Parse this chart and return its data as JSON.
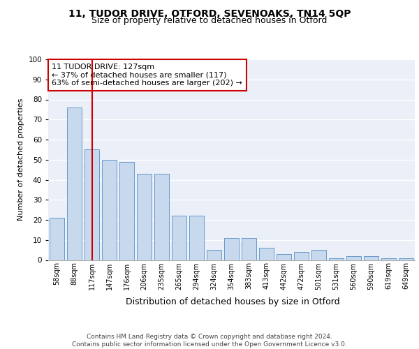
{
  "title1": "11, TUDOR DRIVE, OTFORD, SEVENOAKS, TN14 5QP",
  "title2": "Size of property relative to detached houses in Otford",
  "xlabel": "Distribution of detached houses by size in Otford",
  "ylabel": "Number of detached properties",
  "categories": [
    "58sqm",
    "88sqm",
    "117sqm",
    "147sqm",
    "176sqm",
    "206sqm",
    "235sqm",
    "265sqm",
    "294sqm",
    "324sqm",
    "354sqm",
    "383sqm",
    "413sqm",
    "442sqm",
    "472sqm",
    "501sqm",
    "531sqm",
    "560sqm",
    "590sqm",
    "619sqm",
    "649sqm"
  ],
  "values": [
    21,
    76,
    55,
    50,
    49,
    43,
    43,
    22,
    22,
    5,
    11,
    11,
    6,
    3,
    4,
    5,
    1,
    2,
    2,
    1,
    1
  ],
  "bar_color": "#c9d9ed",
  "bar_edge_color": "#6699cc",
  "highlight_index": 2,
  "highlight_line_color": "#cc0000",
  "annotation_text": "11 TUDOR DRIVE: 127sqm\n← 37% of detached houses are smaller (117)\n63% of semi-detached houses are larger (202) →",
  "annotation_box_color": "#ffffff",
  "annotation_box_edge_color": "#cc0000",
  "ylim": [
    0,
    100
  ],
  "yticks": [
    0,
    10,
    20,
    30,
    40,
    50,
    60,
    70,
    80,
    90,
    100
  ],
  "background_color": "#eaeff8",
  "grid_color": "#ffffff",
  "footer": "Contains HM Land Registry data © Crown copyright and database right 2024.\nContains public sector information licensed under the Open Government Licence v3.0.",
  "title1_fontsize": 10,
  "title2_fontsize": 9,
  "xlabel_fontsize": 9,
  "ylabel_fontsize": 8,
  "annotation_fontsize": 8,
  "footer_fontsize": 6.5,
  "tick_fontsize": 7
}
